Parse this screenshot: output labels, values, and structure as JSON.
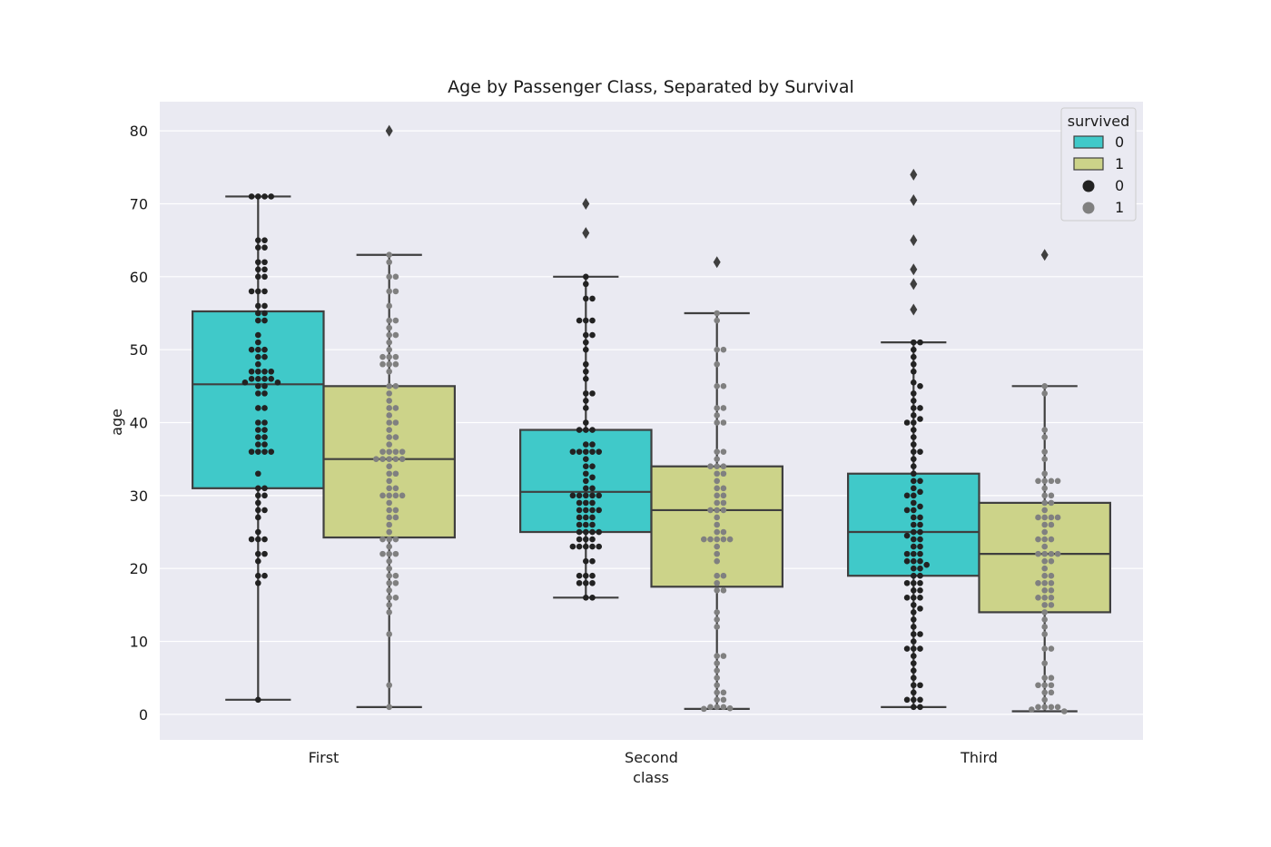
{
  "chart_data": {
    "type": "box",
    "title": "Age by Passenger Class, Separated by Survival",
    "xlabel": "class",
    "ylabel": "age",
    "categories": [
      "First",
      "Second",
      "Third"
    ],
    "ylim": [
      -3.5,
      84
    ],
    "yticks": [
      0,
      10,
      20,
      30,
      40,
      50,
      60,
      70,
      80
    ],
    "grid": true,
    "legend": {
      "title": "survived",
      "placement": "top-right",
      "entries": [
        {
          "label": "0",
          "kind": "box",
          "color": "#40c9c9"
        },
        {
          "label": "1",
          "kind": "box",
          "color": "#ccd389"
        },
        {
          "label": "0",
          "kind": "point",
          "color": "#222222"
        },
        {
          "label": "1",
          "kind": "point",
          "color": "#808080"
        }
      ]
    },
    "colors": {
      "survived_0_box": "#40c9c9",
      "survived_1_box": "#ccd389",
      "survived_0_point": "#222222",
      "survived_1_point": "#808080",
      "plot_background": "#eaeaf2",
      "box_edge": "#3f3f3f"
    },
    "series": [
      {
        "name": "0",
        "boxes": [
          {
            "category": "First",
            "whisker_low": 2,
            "q1": 31,
            "median": 45.25,
            "q3": 55.25,
            "whisker_high": 71,
            "outliers": [],
            "points": [
              71,
              71,
              71,
              71,
              65,
              65,
              64,
              64,
              62,
              62,
              61,
              61,
              60,
              60,
              58,
              58,
              58,
              56,
              56,
              55,
              55,
              54,
              54,
              52,
              51,
              50,
              50,
              50,
              49,
              49,
              48,
              47,
              47,
              47,
              47,
              46,
              46,
              46,
              46,
              45.5,
              45.5,
              45,
              45,
              44,
              44,
              42,
              42,
              40,
              40,
              39,
              39,
              38,
              38,
              37,
              37,
              36,
              36,
              36,
              36,
              33,
              31,
              31,
              30,
              30,
              29,
              28,
              28,
              27,
              25,
              24,
              24,
              24,
              22,
              22,
              21,
              19,
              19,
              18,
              2
            ]
          },
          {
            "category": "Second",
            "whisker_low": 16,
            "q1": 25,
            "median": 30.5,
            "q3": 39,
            "whisker_high": 60,
            "outliers": [
              70,
              66
            ],
            "points": [
              60,
              59,
              57,
              57,
              54,
              54,
              54,
              52,
              52,
              51,
              50,
              48,
              47,
              46,
              44,
              44,
              43,
              42,
              40,
              39,
              39,
              39,
              37,
              37,
              36,
              36,
              36,
              36,
              36,
              35,
              34,
              34,
              33,
              32.5,
              32,
              31,
              31,
              30,
              30,
              30,
              30,
              30,
              29,
              29,
              29,
              28,
              28,
              28,
              28,
              27,
              27,
              27,
              26,
              26,
              26,
              25,
              25,
              25,
              25,
              24,
              24,
              24,
              23,
              23,
              23,
              23,
              23,
              21,
              21,
              19,
              19,
              19,
              18,
              18,
              18,
              16,
              16
            ]
          },
          {
            "category": "Third",
            "whisker_low": 1,
            "q1": 19,
            "median": 25,
            "q3": 33,
            "whisker_high": 51,
            "outliers": [
              74,
              70.5,
              65,
              61,
              59,
              55.5
            ],
            "points": [
              51,
              51,
              50,
              49,
              48,
              47,
              45.5,
              45,
              44,
              43,
              42,
              42,
              41,
              40.5,
              40,
              40,
              39,
              38,
              37,
              36,
              36,
              35,
              34,
              33,
              32,
              32,
              31,
              30.5,
              30,
              30,
              29,
              28.5,
              28,
              28,
              27,
              27,
              26,
              26,
              25,
              25,
              24.5,
              24,
              24,
              23,
              23,
              22,
              22,
              22,
              21,
              21,
              21,
              20.5,
              20,
              20,
              19,
              19,
              18,
              18,
              18,
              17,
              17,
              16,
              16,
              16,
              15,
              14.5,
              14,
              13,
              12,
              11,
              11,
              10,
              9,
              9,
              9,
              8,
              7,
              6,
              5,
              4,
              4,
              3,
              2,
              2,
              2,
              1,
              1
            ]
          }
        ]
      },
      {
        "name": "1",
        "boxes": [
          {
            "category": "First",
            "whisker_low": 1,
            "q1": 24.25,
            "median": 35,
            "q3": 45,
            "whisker_high": 63,
            "outliers": [
              80
            ],
            "points": [
              63,
              62,
              60,
              60,
              58,
              58,
              56,
              54,
              54,
              53,
              52,
              52,
              51,
              50,
              49,
              49,
              49,
              48,
              48,
              48,
              47,
              45,
              45,
              44,
              43,
              42,
              42,
              41,
              40,
              40,
              39,
              38,
              38,
              37,
              36,
              36,
              36,
              36,
              35,
              35,
              35,
              35,
              35,
              34,
              33,
              33,
              32,
              31,
              31,
              30,
              30,
              30,
              30,
              29,
              28,
              28,
              27,
              27,
              26,
              25,
              24,
              24,
              24,
              23,
              22,
              22,
              22,
              21,
              20,
              19,
              19,
              18,
              18,
              17,
              16,
              16,
              15,
              14,
              11,
              4,
              1
            ]
          },
          {
            "category": "Second",
            "whisker_low": 0.75,
            "q1": 17.5,
            "median": 28,
            "q3": 34,
            "whisker_high": 55,
            "outliers": [
              62
            ],
            "points": [
              55,
              54,
              50,
              50,
              48,
              45,
              45,
              42,
              42,
              41,
              40,
              40,
              36,
              36,
              35,
              34,
              34,
              34,
              33,
              33,
              32,
              31,
              31,
              30,
              30,
              29,
              29,
              28,
              28,
              28,
              27,
              26,
              25,
              25,
              24,
              24,
              24,
              24,
              24,
              23,
              22,
              21,
              19,
              19,
              18,
              17,
              17,
              14,
              13,
              12,
              8,
              8,
              7,
              6,
              5,
              4,
              3,
              3,
              2,
              2,
              1,
              1,
              1,
              0.83,
              0.75
            ]
          },
          {
            "category": "Third",
            "whisker_low": 0.42,
            "q1": 14,
            "median": 22,
            "q3": 29,
            "whisker_high": 45,
            "outliers": [
              63
            ],
            "points": [
              45,
              44,
              39,
              38,
              36,
              35,
              33,
              32,
              32,
              32,
              32,
              31,
              30,
              30,
              29,
              29,
              28,
              27,
              27,
              27,
              27,
              26,
              26,
              25,
              24,
              24,
              24,
              23,
              22,
              22,
              22,
              22,
              21,
              21,
              20,
              19,
              19,
              18,
              18,
              18,
              17,
              17,
              16,
              16,
              16,
              15,
              15,
              14,
              13,
              12,
              11,
              9,
              9,
              7,
              5,
              5,
              4,
              4,
              4,
              3,
              3,
              2,
              1,
              1,
              1,
              1,
              0.67,
              0.42
            ]
          }
        ]
      }
    ]
  }
}
